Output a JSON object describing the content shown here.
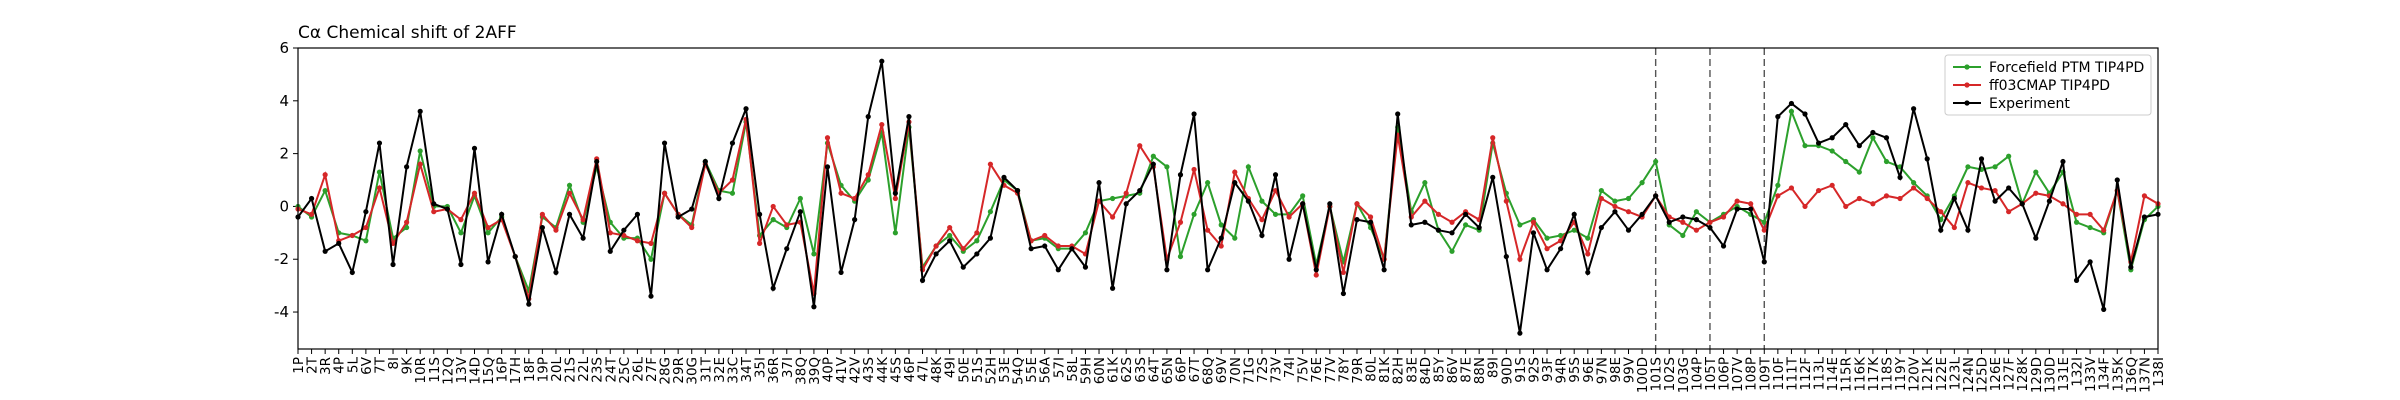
{
  "chart_data": {
    "type": "line",
    "title": "Cα Chemical shift of 2AFF",
    "categories": [
      "1P",
      "2T",
      "3R",
      "4P",
      "5L",
      "6V",
      "7T",
      "8I",
      "9K",
      "10R",
      "11S",
      "12Q",
      "13V",
      "14D",
      "15Q",
      "16P",
      "17H",
      "18F",
      "19P",
      "20L",
      "21S",
      "22L",
      "23S",
      "24T",
      "25C",
      "26L",
      "27F",
      "28G",
      "29R",
      "30G",
      "31T",
      "32E",
      "33C",
      "34T",
      "35I",
      "36R",
      "37I",
      "38Q",
      "39Q",
      "40P",
      "41V",
      "42V",
      "43S",
      "44K",
      "45S",
      "46P",
      "47L",
      "48K",
      "49I",
      "50E",
      "51S",
      "52H",
      "53E",
      "54Q",
      "55E",
      "56A",
      "57I",
      "58L",
      "59H",
      "60N",
      "61K",
      "62S",
      "63S",
      "64T",
      "65N",
      "66P",
      "67T",
      "68Q",
      "69V",
      "70N",
      "71G",
      "72S",
      "73V",
      "74I",
      "75V",
      "76E",
      "77V",
      "78Y",
      "79R",
      "80L",
      "81K",
      "82H",
      "83E",
      "84D",
      "85Y",
      "86V",
      "87E",
      "88N",
      "89I",
      "90D",
      "91S",
      "92S",
      "93F",
      "94R",
      "95S",
      "96E",
      "97N",
      "98E",
      "99V",
      "100D",
      "101S",
      "102S",
      "103G",
      "104P",
      "105T",
      "106P",
      "107V",
      "108P",
      "109T",
      "110F",
      "111T",
      "112F",
      "113L",
      "114E",
      "115R",
      "116K",
      "117K",
      "118S",
      "119Y",
      "120V",
      "121K",
      "122E",
      "123L",
      "124N",
      "125D",
      "126E",
      "127F",
      "128K",
      "129D",
      "130D",
      "131E",
      "132I",
      "133V",
      "134F",
      "135K",
      "136Q",
      "137N",
      "138I"
    ],
    "series": [
      {
        "name": "Forcefield PTM TIP4PD",
        "color": "#2ca02c",
        "values": [
          0.0,
          -0.4,
          0.6,
          -1.0,
          -1.1,
          -1.3,
          1.3,
          -1.2,
          -0.8,
          2.1,
          0.0,
          0.0,
          -1.0,
          0.4,
          -1.0,
          -0.4,
          -1.9,
          -3.2,
          -0.4,
          -0.8,
          0.8,
          -0.6,
          1.5,
          -0.6,
          -1.2,
          -1.2,
          -2.0,
          0.5,
          -0.3,
          -0.7,
          1.7,
          0.6,
          0.5,
          3.2,
          -1.1,
          -0.5,
          -0.8,
          0.3,
          -1.8,
          2.4,
          0.8,
          0.2,
          1.0,
          2.8,
          -1.0,
          3.0,
          -2.3,
          -1.5,
          -1.1,
          -1.7,
          -1.3,
          -0.2,
          1.0,
          0.6,
          -1.3,
          -1.2,
          -1.6,
          -1.6,
          -1.0,
          0.2,
          0.3,
          0.4,
          0.5,
          1.9,
          1.5,
          -1.9,
          -0.3,
          0.9,
          -0.7,
          -1.2,
          1.5,
          0.2,
          -0.3,
          -0.3,
          0.4,
          -2.2,
          0.0,
          -2.1,
          0.1,
          -0.8,
          -2.0,
          3.0,
          -0.2,
          0.9,
          -0.9,
          -1.7,
          -0.7,
          -0.9,
          2.4,
          0.5,
          -0.7,
          -0.5,
          -1.2,
          -1.1,
          -0.9,
          -1.2,
          0.6,
          0.2,
          0.3,
          0.9,
          1.7,
          -0.7,
          -1.1,
          -0.2,
          -0.6,
          -0.3,
          0.0,
          -0.3,
          -0.6,
          0.8,
          3.6,
          2.3,
          2.3,
          2.1,
          1.7,
          1.3,
          2.6,
          1.7,
          1.5,
          0.9,
          0.4,
          -0.5,
          0.4,
          1.5,
          1.4,
          1.5,
          1.9,
          0.1,
          1.3,
          0.5,
          1.3,
          -0.6,
          -0.8,
          -1.0,
          0.6,
          -2.4,
          -0.5,
          0.0
        ]
      },
      {
        "name": "ff03CMAP TIP4PD",
        "color": "#d62728",
        "values": [
          -0.1,
          -0.3,
          1.2,
          -1.3,
          -1.1,
          -0.8,
          0.7,
          -1.4,
          -0.6,
          1.6,
          -0.2,
          -0.1,
          -0.5,
          0.5,
          -0.8,
          -0.5,
          -1.9,
          -3.5,
          -0.3,
          -0.9,
          0.5,
          -0.5,
          1.8,
          -1.0,
          -1.1,
          -1.3,
          -1.4,
          0.5,
          -0.3,
          -0.8,
          1.6,
          0.5,
          1.0,
          3.3,
          -1.4,
          0.0,
          -0.7,
          -0.6,
          -3.3,
          2.6,
          0.5,
          0.3,
          1.2,
          3.1,
          0.3,
          3.2,
          -2.4,
          -1.5,
          -0.8,
          -1.6,
          -1.0,
          1.6,
          0.8,
          0.5,
          -1.3,
          -1.1,
          -1.5,
          -1.5,
          -1.8,
          0.2,
          -0.4,
          0.5,
          2.3,
          1.5,
          -2.0,
          -0.6,
          1.4,
          -0.9,
          -1.5,
          1.3,
          0.3,
          -0.5,
          0.6,
          -0.4,
          0.1,
          -2.6,
          0.0,
          -2.5,
          0.1,
          -0.4,
          -2.0,
          2.7,
          -0.4,
          0.2,
          -0.3,
          -0.6,
          -0.2,
          -0.5,
          2.6,
          0.2,
          -2.0,
          -0.6,
          -1.6,
          -1.3,
          -0.6,
          -1.8,
          0.3,
          0.0,
          -0.2,
          -0.4,
          0.4,
          -0.4,
          -0.6,
          -0.9,
          -0.6,
          -0.4,
          0.2,
          0.1,
          -0.9,
          0.4,
          0.7,
          0.0,
          0.6,
          0.8,
          0.0,
          0.3,
          0.1,
          0.4,
          0.3,
          0.7,
          0.3,
          -0.2,
          -0.8,
          0.9,
          0.7,
          0.6,
          -0.2,
          0.1,
          0.5,
          0.4,
          0.1,
          -0.3,
          -0.3,
          -0.9,
          0.6,
          -2.1,
          0.4,
          0.1
        ]
      },
      {
        "name": "Experiment",
        "color": "#000000",
        "values": [
          -0.4,
          0.3,
          -1.7,
          -1.4,
          -2.5,
          -0.2,
          2.4,
          -2.2,
          1.5,
          3.6,
          0.1,
          -0.1,
          -2.2,
          2.2,
          -2.1,
          -0.3,
          -1.9,
          -3.7,
          -0.8,
          -2.5,
          -0.3,
          -1.2,
          1.7,
          -1.7,
          -0.9,
          -0.3,
          -3.4,
          2.4,
          -0.4,
          -0.1,
          1.7,
          0.3,
          2.4,
          3.7,
          -0.3,
          -3.1,
          -1.6,
          -0.2,
          -3.8,
          1.5,
          -2.5,
          -0.5,
          3.4,
          5.5,
          0.5,
          3.4,
          -2.8,
          -1.8,
          -1.3,
          -2.3,
          -1.8,
          -1.2,
          1.1,
          0.6,
          -1.6,
          -1.5,
          -2.4,
          -1.6,
          -2.3,
          0.9,
          -3.1,
          0.1,
          0.6,
          1.6,
          -2.4,
          1.2,
          3.5,
          -2.4,
          -1.2,
          0.9,
          0.2,
          -1.1,
          1.2,
          -2.0,
          0.1,
          -2.4,
          0.1,
          -3.3,
          -0.5,
          -0.6,
          -2.4,
          3.5,
          -0.7,
          -0.6,
          -0.9,
          -1.0,
          -0.3,
          -0.8,
          1.1,
          -1.9,
          -4.8,
          -1.0,
          -2.4,
          -1.6,
          -0.3,
          -2.5,
          -0.8,
          -0.2,
          -0.9,
          -0.3,
          0.4,
          -0.6,
          -0.4,
          -0.5,
          -0.8,
          -1.5,
          -0.1,
          -0.1,
          -2.1,
          3.4,
          3.9,
          3.5,
          2.4,
          2.6,
          3.1,
          2.3,
          2.8,
          2.6,
          1.1,
          3.7,
          1.8,
          -0.9,
          0.3,
          -0.9,
          1.8,
          0.2,
          0.7,
          0.1,
          -1.2,
          0.2,
          1.7,
          -2.8,
          -2.1,
          -3.9,
          1.0,
          -2.3,
          -0.4,
          -0.3
        ]
      }
    ],
    "ylim": [
      -5.4,
      6
    ],
    "yticks": [
      -4,
      -2,
      0,
      2,
      4,
      6
    ],
    "vlines": [
      "101S",
      "105T",
      "109T"
    ],
    "legend": "upper right",
    "grid": false
  }
}
